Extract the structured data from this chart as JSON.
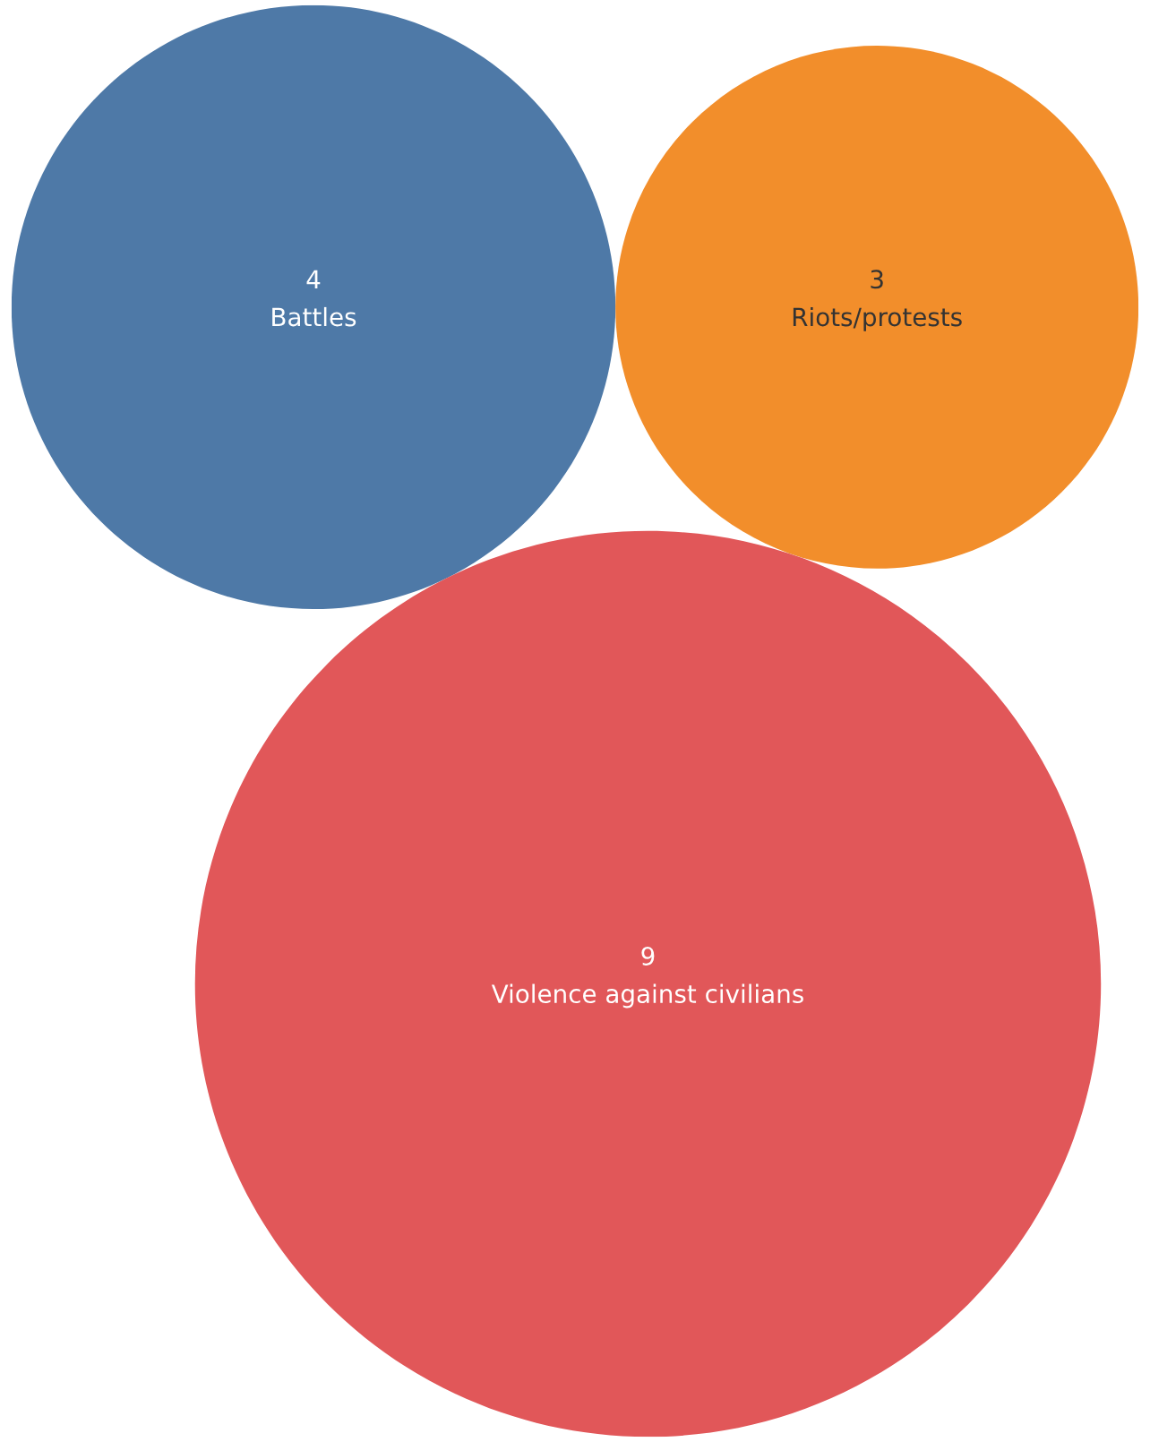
{
  "chart_data": {
    "type": "other",
    "categories": [
      "Battles",
      "Riots/protests",
      "Violence against civilians"
    ],
    "values": [
      4,
      3,
      9
    ],
    "colors": [
      "#4e79a7",
      "#f28e2b",
      "#e15759"
    ],
    "data_labels": true
  }
}
